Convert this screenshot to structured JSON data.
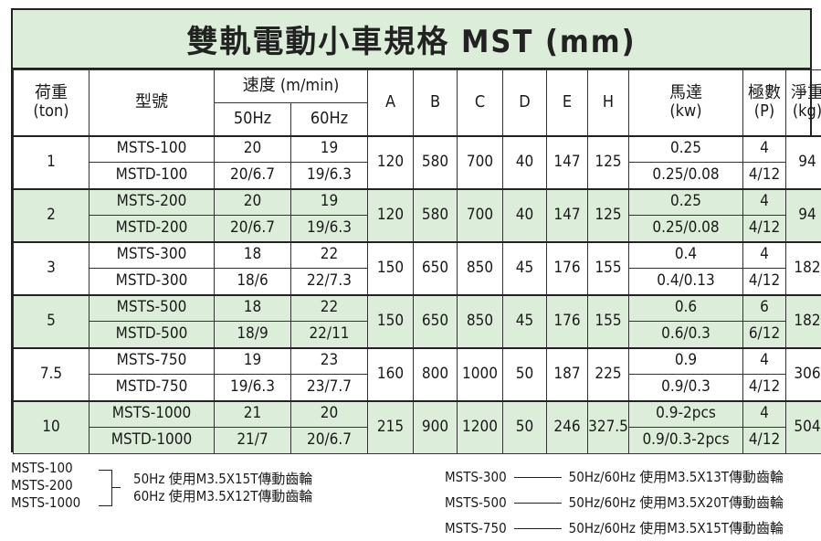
{
  "title": "雙軌電動小車規格 MST (mm)",
  "headers": {
    "load": "荷重",
    "load_unit": "(ton)",
    "model": "型號",
    "speed": "速度 (m/min)",
    "hz50": "50Hz",
    "hz60": "60Hz",
    "A": "A",
    "B": "B",
    "C": "C",
    "D": "D",
    "E": "E",
    "H": "H",
    "motor": "馬達",
    "motor_unit": "(kw)",
    "poles": "極數",
    "poles_unit": "(P)",
    "weight": "淨重",
    "weight_unit": "(kg)"
  },
  "groups": [
    {
      "load": "1",
      "A": "120",
      "B": "580",
      "C": "700",
      "D": "40",
      "E": "147",
      "H": "125",
      "weight": "94",
      "rows": [
        {
          "model": "MSTS-100",
          "s50": "20",
          "s60": "19",
          "kw": "0.25",
          "p": "4"
        },
        {
          "model": "MSTD-100",
          "s50": "20/6.7",
          "s60": "19/6.3",
          "kw": "0.25/0.08",
          "p": "4/12"
        }
      ]
    },
    {
      "load": "2",
      "A": "120",
      "B": "580",
      "C": "700",
      "D": "40",
      "E": "147",
      "H": "125",
      "weight": "94",
      "rows": [
        {
          "model": "MSTS-200",
          "s50": "20",
          "s60": "19",
          "kw": "0.25",
          "p": "4"
        },
        {
          "model": "MSTD-200",
          "s50": "20/6.7",
          "s60": "19/6.3",
          "kw": "0.25/0.08",
          "p": "4/12"
        }
      ]
    },
    {
      "load": "3",
      "A": "150",
      "B": "650",
      "C": "850",
      "D": "45",
      "E": "176",
      "H": "155",
      "weight": "182",
      "rows": [
        {
          "model": "MSTS-300",
          "s50": "18",
          "s60": "22",
          "kw": "0.4",
          "p": "4"
        },
        {
          "model": "MSTD-300",
          "s50": "18/6",
          "s60": "22/7.3",
          "kw": "0.4/0.13",
          "p": "4/12"
        }
      ]
    },
    {
      "load": "5",
      "A": "150",
      "B": "650",
      "C": "850",
      "D": "45",
      "E": "176",
      "H": "155",
      "weight": "182",
      "rows": [
        {
          "model": "MSTS-500",
          "s50": "18",
          "s60": "22",
          "kw": "0.6",
          "p": "6"
        },
        {
          "model": "MSTD-500",
          "s50": "18/9",
          "s60": "22/11",
          "kw": "0.6/0.3",
          "p": "6/12"
        }
      ]
    },
    {
      "load": "7.5",
      "A": "160",
      "B": "800",
      "C": "1000",
      "D": "50",
      "E": "187",
      "H": "225",
      "weight": "306",
      "rows": [
        {
          "model": "MSTS-750",
          "s50": "19",
          "s60": "23",
          "kw": "0.9",
          "p": "4"
        },
        {
          "model": "MSTD-750",
          "s50": "19/6.3",
          "s60": "23/7.7",
          "kw": "0.9/0.3",
          "p": "4/12"
        }
      ]
    },
    {
      "load": "10",
      "A": "215",
      "B": "900",
      "C": "1200",
      "D": "50",
      "E": "246",
      "H": "327.5",
      "weight": "504",
      "rows": [
        {
          "model": "MSTS-1000",
          "s50": "21",
          "s60": "20",
          "kw": "0.9-2pcs",
          "p": "4"
        },
        {
          "model": "MSTD-1000",
          "s50": "21/7",
          "s60": "20/6.7",
          "kw": "0.9/0.3-2pcs",
          "p": "4/12"
        }
      ]
    }
  ],
  "notes_left": {
    "models": [
      "MSTS-100",
      "MSTS-200",
      "MSTS-1000"
    ],
    "lines": [
      "50Hz 使用M3.5X15T傳動齒輪",
      "60Hz 使用M3.5X12T傳動齒輪"
    ]
  },
  "notes_right": [
    {
      "model": "MSTS-300",
      "text": "50Hz/60Hz 使用M3.5X13T傳動齒輪"
    },
    {
      "model": "MSTS-500",
      "text": "50Hz/60Hz 使用M3.5X20T傳動齒輪"
    },
    {
      "model": "MSTS-750",
      "text": "50Hz/60Hz 使用M3.5X15T傳動齒輪"
    }
  ],
  "colors": {
    "accent": "#dcedd9",
    "border": "#222222"
  }
}
